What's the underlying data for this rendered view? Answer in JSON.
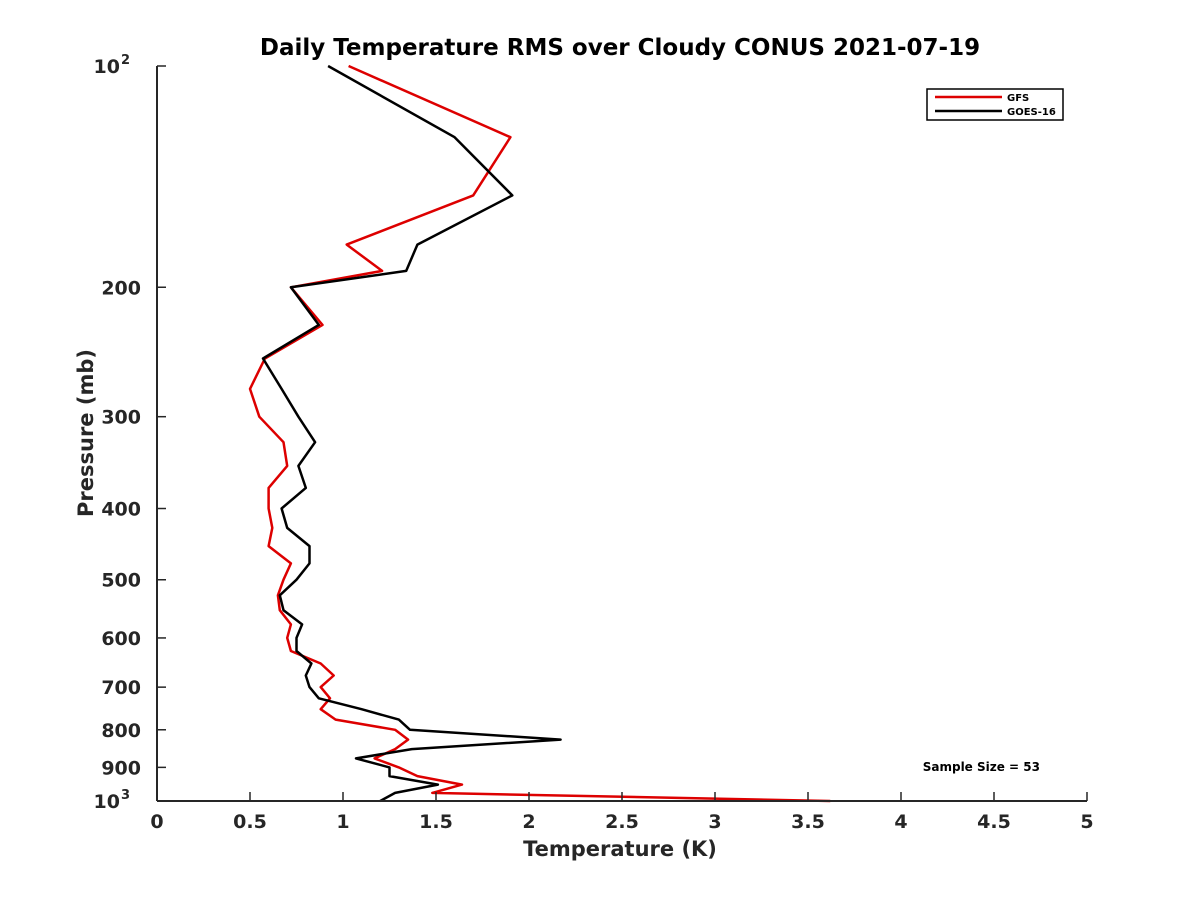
{
  "chart_data": {
    "type": "line",
    "title": "Daily Temperature RMS over Cloudy CONUS 2021-07-19",
    "xlabel": "Temperature (K)",
    "ylabel": "Pressure (mb)",
    "xlim": [
      0,
      5
    ],
    "ylim": [
      100,
      1000
    ],
    "y_scale": "log",
    "y_reversed": true,
    "grid": false,
    "legend_position": "top-right",
    "x_ticks": [
      "0",
      "0.5",
      "1",
      "1.5",
      "2",
      "2.5",
      "3",
      "3.5",
      "4",
      "4.5",
      "5"
    ],
    "y_ticks": [
      {
        "value": 100,
        "base": "10",
        "exp": "2"
      },
      {
        "value": 200,
        "label": "200"
      },
      {
        "value": 300,
        "label": "300"
      },
      {
        "value": 400,
        "label": "400"
      },
      {
        "value": 500,
        "label": "500"
      },
      {
        "value": 600,
        "label": "600"
      },
      {
        "value": 700,
        "label": "700"
      },
      {
        "value": 800,
        "label": "800"
      },
      {
        "value": 900,
        "label": "900"
      },
      {
        "value": 1000,
        "base": "10",
        "exp": "3"
      }
    ],
    "series": [
      {
        "name": "GFS",
        "color": "#dd0000",
        "points": [
          [
            1.03,
            100
          ],
          [
            1.9,
            125
          ],
          [
            1.7,
            150
          ],
          [
            1.02,
            175
          ],
          [
            1.21,
            190
          ],
          [
            0.72,
            200
          ],
          [
            0.89,
            225
          ],
          [
            0.58,
            250
          ],
          [
            0.5,
            275
          ],
          [
            0.55,
            300
          ],
          [
            0.68,
            325
          ],
          [
            0.7,
            350
          ],
          [
            0.6,
            375
          ],
          [
            0.6,
            400
          ],
          [
            0.62,
            425
          ],
          [
            0.6,
            450
          ],
          [
            0.72,
            475
          ],
          [
            0.68,
            500
          ],
          [
            0.65,
            525
          ],
          [
            0.66,
            550
          ],
          [
            0.72,
            575
          ],
          [
            0.7,
            600
          ],
          [
            0.72,
            625
          ],
          [
            0.88,
            650
          ],
          [
            0.95,
            675
          ],
          [
            0.88,
            700
          ],
          [
            0.93,
            725
          ],
          [
            0.88,
            750
          ],
          [
            0.96,
            775
          ],
          [
            1.28,
            800
          ],
          [
            1.35,
            825
          ],
          [
            1.28,
            850
          ],
          [
            1.17,
            875
          ],
          [
            1.3,
            900
          ],
          [
            1.4,
            925
          ],
          [
            1.64,
            950
          ],
          [
            1.48,
            975
          ],
          [
            3.62,
            1000
          ]
        ]
      },
      {
        "name": "GOES-16",
        "color": "#000000",
        "points": [
          [
            0.92,
            100
          ],
          [
            1.6,
            125
          ],
          [
            1.91,
            150
          ],
          [
            1.4,
            175
          ],
          [
            1.34,
            190
          ],
          [
            0.72,
            200
          ],
          [
            0.87,
            225
          ],
          [
            0.57,
            250
          ],
          [
            0.67,
            275
          ],
          [
            0.76,
            300
          ],
          [
            0.85,
            325
          ],
          [
            0.76,
            350
          ],
          [
            0.8,
            375
          ],
          [
            0.67,
            400
          ],
          [
            0.7,
            425
          ],
          [
            0.82,
            450
          ],
          [
            0.82,
            475
          ],
          [
            0.75,
            500
          ],
          [
            0.66,
            525
          ],
          [
            0.68,
            550
          ],
          [
            0.78,
            575
          ],
          [
            0.75,
            600
          ],
          [
            0.75,
            625
          ],
          [
            0.83,
            650
          ],
          [
            0.8,
            675
          ],
          [
            0.82,
            700
          ],
          [
            0.87,
            725
          ],
          [
            1.1,
            750
          ],
          [
            1.3,
            775
          ],
          [
            1.36,
            800
          ],
          [
            2.17,
            825
          ],
          [
            1.37,
            850
          ],
          [
            1.07,
            875
          ],
          [
            1.25,
            900
          ],
          [
            1.25,
            925
          ],
          [
            1.51,
            950
          ],
          [
            1.28,
            975
          ],
          [
            1.2,
            1000
          ]
        ]
      }
    ],
    "annotation": "Sample Size = 53"
  }
}
